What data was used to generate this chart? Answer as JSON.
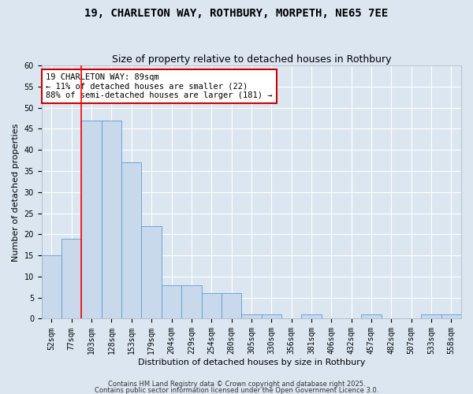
{
  "title": "19, CHARLETON WAY, ROTHBURY, MORPETH, NE65 7EE",
  "subtitle": "Size of property relative to detached houses in Rothbury",
  "xlabel": "Distribution of detached houses by size in Rothbury",
  "ylabel": "Number of detached properties",
  "categories": [
    "52sqm",
    "77sqm",
    "103sqm",
    "128sqm",
    "153sqm",
    "179sqm",
    "204sqm",
    "229sqm",
    "254sqm",
    "280sqm",
    "305sqm",
    "330sqm",
    "356sqm",
    "381sqm",
    "406sqm",
    "432sqm",
    "457sqm",
    "482sqm",
    "507sqm",
    "533sqm",
    "558sqm"
  ],
  "values": [
    15,
    19,
    47,
    47,
    37,
    22,
    8,
    8,
    6,
    6,
    1,
    1,
    0,
    1,
    0,
    0,
    1,
    0,
    0,
    1,
    1
  ],
  "bar_color": "#c9d9ec",
  "bar_edge_color": "#5b9bd5",
  "red_line_x": 1.5,
  "annotation_text": "19 CHARLETON WAY: 89sqm\n← 11% of detached houses are smaller (22)\n88% of semi-detached houses are larger (181) →",
  "annotation_box_color": "#ffffff",
  "annotation_box_edge_color": "#cc0000",
  "footer_line1": "Contains HM Land Registry data © Crown copyright and database right 2025.",
  "footer_line2": "Contains public sector information licensed under the Open Government Licence 3.0.",
  "ylim": [
    0,
    60
  ],
  "yticks": [
    0,
    5,
    10,
    15,
    20,
    25,
    30,
    35,
    40,
    45,
    50,
    55,
    60
  ],
  "background_color": "#dce6f1",
  "plot_bg_color": "#dce6f1",
  "grid_color": "#ffffff",
  "title_fontsize": 10,
  "subtitle_fontsize": 9,
  "axis_label_fontsize": 8,
  "tick_fontsize": 7,
  "annot_fontsize": 7.5
}
